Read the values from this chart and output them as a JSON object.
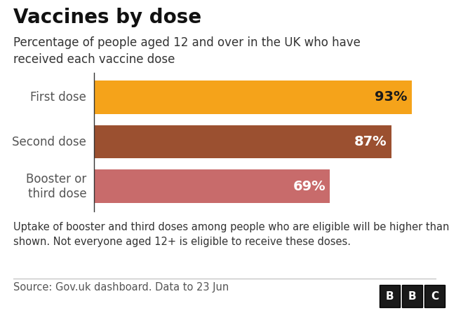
{
  "title": "Vaccines by dose",
  "subtitle": "Percentage of people aged 12 and over in the UK who have\nreceived each vaccine dose",
  "categories": [
    "First dose",
    "Second dose",
    "Booster or\nthird dose"
  ],
  "values": [
    93,
    87,
    69
  ],
  "bar_colors": [
    "#F5A31A",
    "#9B5030",
    "#C86B6B"
  ],
  "value_labels": [
    "93%",
    "87%",
    "69%"
  ],
  "value_label_colors": [
    "#1a1a1a",
    "#ffffff",
    "#ffffff"
  ],
  "footnote": "Uptake of booster and third doses among people who are eligible will be higher than\nshown. Not everyone aged 12+ is eligible to receive these doses.",
  "source": "Source: Gov.uk dashboard. Data to 23 Jun",
  "xlim": [
    0,
    100
  ],
  "background_color": "#ffffff",
  "title_fontsize": 20,
  "subtitle_fontsize": 12,
  "label_fontsize": 12,
  "value_fontsize": 14,
  "footnote_fontsize": 10.5,
  "source_fontsize": 10.5,
  "bbc_bg": "#1a1a1a",
  "bbc_fg": "#ffffff",
  "spine_color": "#333333",
  "label_color": "#555555",
  "footnote_color": "#333333",
  "source_color": "#555555",
  "divider_color": "#bbbbbb"
}
